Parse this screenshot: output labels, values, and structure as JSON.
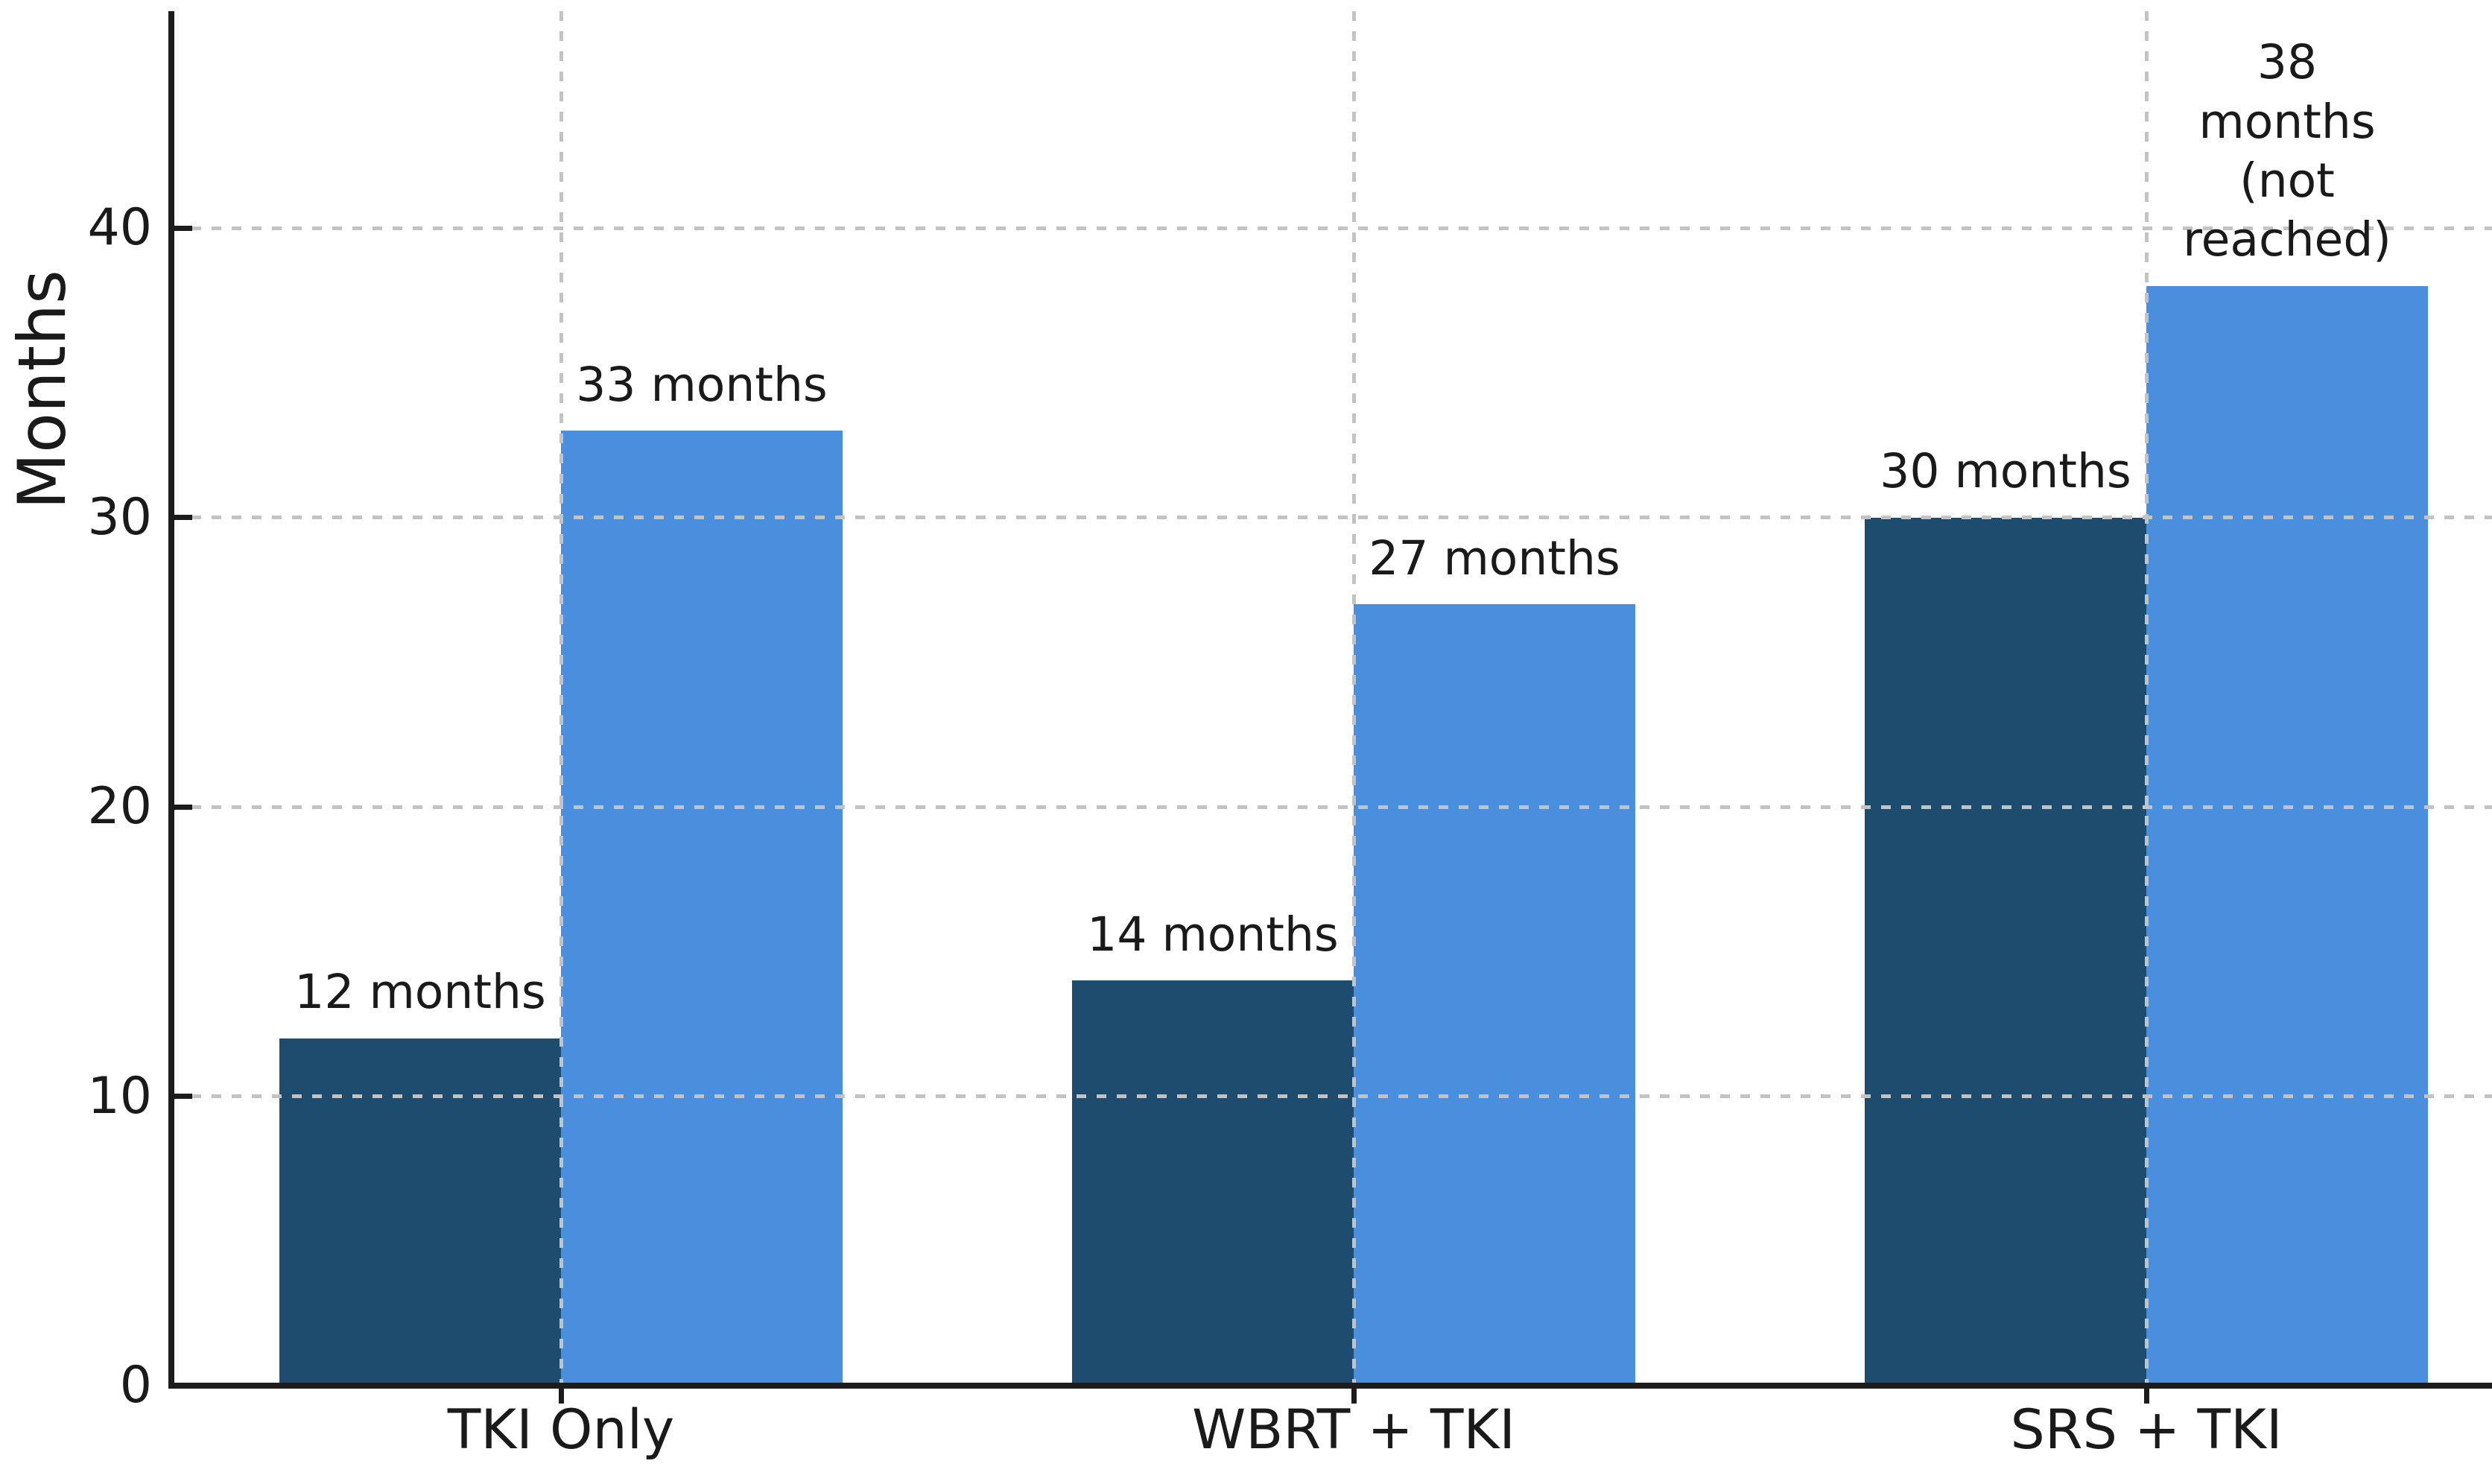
{
  "chart_data": {
    "type": "bar",
    "title": "",
    "ylabel": "Months",
    "xlabel": "",
    "categories": [
      "TKI Only",
      "WBRT + TKI",
      "SRS + TKI"
    ],
    "series": [
      {
        "name": "series-1-dark-blue",
        "color": "#1E4C6E",
        "values": [
          12,
          14,
          30
        ],
        "bar_labels": [
          "12 months",
          "14 months",
          "30 months"
        ]
      },
      {
        "name": "series-2-light-blue",
        "color": "#4A8FDE",
        "values": [
          33,
          27,
          38
        ],
        "bar_labels": [
          "33 months",
          "27 months",
          "38 months\n(not reached)"
        ]
      }
    ],
    "yticks": [
      0,
      10,
      20,
      30,
      40
    ],
    "ylim": [
      0,
      47.5
    ],
    "legend": "none",
    "grid": {
      "visible": true,
      "style": "dashed",
      "color": "#C3C3C3",
      "horizontal_at": [
        10,
        20,
        30,
        40
      ],
      "vertical_at_category_centers": true,
      "drawn_above_bars": true
    },
    "axis_color": "#1C1C1C",
    "text_color": "#1A1A1A"
  }
}
